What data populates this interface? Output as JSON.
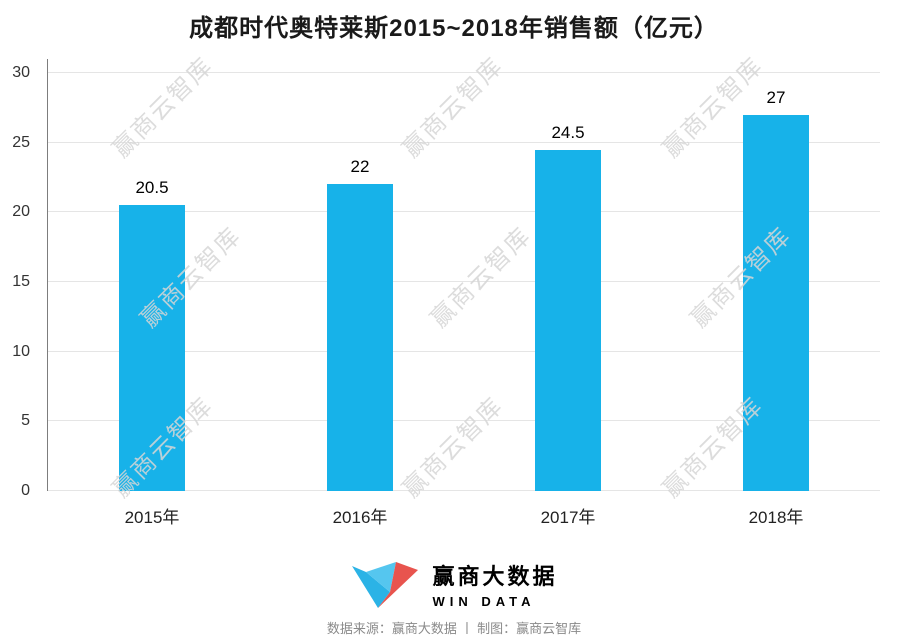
{
  "title": "成都时代奥特莱斯2015~2018年销售额（亿元）",
  "chart_data": {
    "type": "bar",
    "categories": [
      "2015年",
      "2016年",
      "2017年",
      "2018年"
    ],
    "values": [
      20.5,
      22,
      24.5,
      27
    ],
    "title": "成都时代奥特莱斯2015~2018年销售额（亿元）",
    "xlabel": "",
    "ylabel": "",
    "ylim": [
      0,
      30
    ],
    "yticks": [
      0,
      5,
      10,
      15,
      20,
      25,
      30
    ],
    "bar_color": "#17b2e9",
    "grid_color": "#e5e5e5",
    "axis_color": "#7d7d7d",
    "grid": true,
    "legend": false
  },
  "watermark": {
    "text": "赢商云智库"
  },
  "logo": {
    "name": "赢商大数据",
    "subtitle": "WIN DATA",
    "color": "#2bb3e6",
    "color_light": "#55c6ef",
    "accent_red": "#e8544e"
  },
  "footer": {
    "text": "数据来源：赢商大数据 丨 制图：赢商云智库"
  }
}
